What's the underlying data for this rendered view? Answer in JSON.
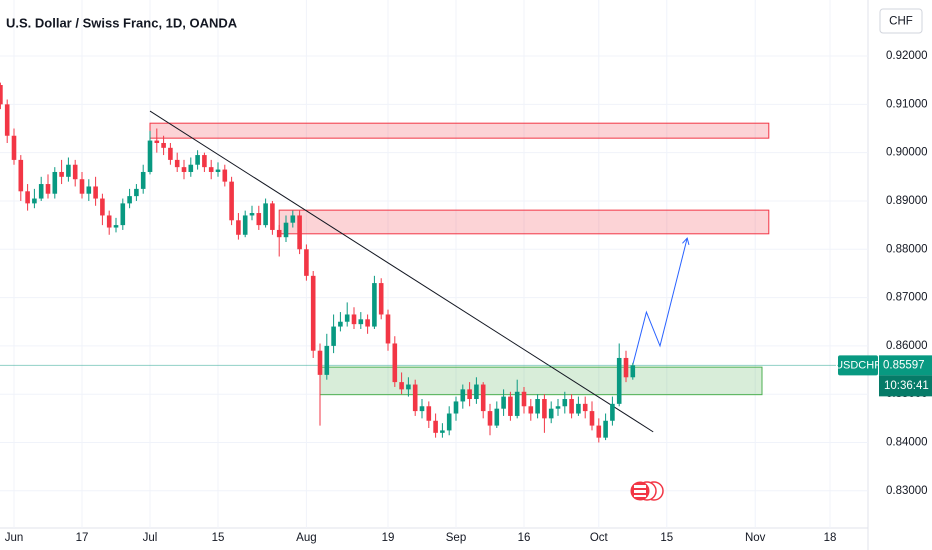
{
  "chart_data": {
    "type": "candlestick",
    "title": "U.S. Dollar / Swiss Franc, 1D, OANDA",
    "currency": "CHF",
    "symbol": "USDCHF",
    "countdown": "10:36:41",
    "up_color": "#089981",
    "down_color": "#f23645",
    "categories": [
      "May 30",
      "May 31",
      "Jun 3",
      "Jun 4",
      "Jun 5",
      "Jun 6",
      "Jun 7",
      "Jun 10",
      "Jun 11",
      "Jun 12",
      "Jun 13",
      "Jun 14",
      "Jun 17",
      "Jun 18",
      "Jun 19",
      "Jun 20",
      "Jun 21",
      "Jun 24",
      "Jun 25",
      "Jun 26",
      "Jun 27",
      "Jun 28",
      "Jul 1",
      "Jul 2",
      "Jul 3",
      "Jul 4",
      "Jul 5",
      "Jul 8",
      "Jul 9",
      "Jul 10",
      "Jul 11",
      "Jul 12",
      "Jul 15",
      "Jul 16",
      "Jul 17",
      "Jul 18",
      "Jul 19",
      "Jul 22",
      "Jul 23",
      "Jul 24",
      "Jul 25",
      "Jul 26",
      "Jul 29",
      "Jul 30",
      "Jul 31",
      "Aug 1",
      "Aug 2",
      "Aug 5",
      "Aug 6",
      "Aug 7",
      "Aug 8",
      "Aug 9",
      "Aug 12",
      "Aug 13",
      "Aug 14",
      "Aug 15",
      "Aug 16",
      "Aug 19",
      "Aug 20",
      "Aug 21",
      "Aug 22",
      "Aug 23",
      "Aug 26",
      "Aug 27",
      "Aug 28",
      "Aug 29",
      "Aug 30",
      "Sep 2",
      "Sep 3",
      "Sep 4",
      "Sep 5",
      "Sep 6",
      "Sep 9",
      "Sep 10",
      "Sep 11",
      "Sep 12",
      "Sep 13",
      "Sep 16",
      "Sep 17",
      "Sep 18",
      "Sep 19",
      "Sep 20",
      "Sep 23",
      "Sep 24",
      "Sep 25",
      "Sep 26",
      "Sep 27",
      "Sep 30",
      "Oct 1",
      "Oct 2",
      "Oct 3",
      "Oct 4",
      "Oct 7",
      "Oct 8",
      "Oct 9",
      "Oct 10",
      "Oct 11",
      "Oct 14",
      "Oct 15",
      "Oct 16",
      "Oct 17",
      "Oct 18",
      "Oct 21",
      "Oct 22",
      "Oct 23",
      "Oct 24",
      "Oct 25",
      "Oct 28",
      "Oct 29",
      "Oct 30",
      "Oct 31",
      "Nov 1",
      "Nov 4",
      "Nov 5",
      "Nov 6",
      "Nov 7",
      "Nov 8",
      "Nov 11",
      "Nov 12",
      "Nov 13",
      "Nov 14",
      "Nov 15",
      "Nov 18",
      "Nov 19",
      "Nov 20",
      "Nov 21",
      "Nov 22",
      "Nov 25"
    ],
    "open": [
      0.914,
      0.91,
      0.9035,
      0.8985,
      0.892,
      0.8895,
      0.8905,
      0.8935,
      0.8915,
      0.896,
      0.895,
      0.8975,
      0.8945,
      0.8915,
      0.893,
      0.8905,
      0.887,
      0.8845,
      0.885,
      0.8895,
      0.891,
      0.8925,
      0.896,
      0.9025,
      0.902,
      0.901,
      0.8985,
      0.897,
      0.896,
      0.8975,
      0.8995,
      0.897,
      0.896,
      0.8965,
      0.894,
      0.886,
      0.883,
      0.887,
      0.8875,
      0.885,
      0.8895,
      0.884,
      0.8825,
      0.8855,
      0.887,
      0.88,
      0.8745,
      0.859,
      0.854,
      0.86,
      0.864,
      0.865,
      0.8665,
      0.8645,
      0.8655,
      0.864,
      0.873,
      0.8665,
      0.8605,
      0.8525,
      0.851,
      0.852,
      0.8465,
      0.8475,
      0.8445,
      0.842,
      0.8425,
      0.846,
      0.8485,
      0.851,
      0.849,
      0.852,
      0.8465,
      0.8435,
      0.847,
      0.8495,
      0.8455,
      0.8505,
      0.8475,
      0.846,
      0.849,
      0.845,
      0.847,
      0.8475,
      0.849,
      0.846,
      0.848,
      0.8465,
      0.8435,
      0.841,
      0.8445,
      0.848,
      0.8575,
      0.8535,
      null,
      null,
      null,
      null,
      null,
      null,
      null,
      null,
      null,
      null,
      null,
      null,
      null,
      null,
      null,
      null,
      null,
      null,
      null,
      null,
      null,
      null,
      null,
      null,
      null,
      null,
      null,
      null,
      null,
      null,
      null,
      null,
      null,
      null
    ],
    "high": [
      0.9145,
      0.911,
      0.905,
      0.8995,
      0.8935,
      0.8925,
      0.895,
      0.8955,
      0.897,
      0.8985,
      0.899,
      0.8985,
      0.896,
      0.8945,
      0.895,
      0.8915,
      0.888,
      0.8865,
      0.8905,
      0.8925,
      0.8935,
      0.8975,
      0.9045,
      0.905,
      0.9035,
      0.902,
      0.9,
      0.8985,
      0.899,
      0.9005,
      0.9,
      0.8985,
      0.898,
      0.8975,
      0.895,
      0.8875,
      0.888,
      0.889,
      0.889,
      0.8905,
      0.89,
      0.885,
      0.887,
      0.888,
      0.888,
      0.881,
      0.8755,
      0.8605,
      0.8625,
      0.8665,
      0.867,
      0.869,
      0.868,
      0.867,
      0.8665,
      0.8745,
      0.874,
      0.8675,
      0.862,
      0.8545,
      0.8535,
      0.853,
      0.849,
      0.8485,
      0.846,
      0.844,
      0.8475,
      0.8495,
      0.852,
      0.8525,
      0.8535,
      0.8525,
      0.848,
      0.8485,
      0.851,
      0.8505,
      0.853,
      0.8515,
      0.849,
      0.85,
      0.85,
      0.8485,
      0.849,
      0.8505,
      0.85,
      0.8495,
      0.8495,
      0.8485,
      0.845,
      0.846,
      0.8495,
      0.8605,
      0.859,
      0.8565,
      null,
      null,
      null,
      null,
      null,
      null,
      null,
      null,
      null,
      null,
      null,
      null,
      null,
      null,
      null,
      null,
      null,
      null,
      null,
      null,
      null,
      null,
      null,
      null,
      null,
      null,
      null,
      null,
      null,
      null,
      null,
      null,
      null,
      null
    ],
    "low": [
      0.909,
      0.902,
      0.8975,
      0.89,
      0.888,
      0.8885,
      0.89,
      0.8905,
      0.8905,
      0.8935,
      0.894,
      0.893,
      0.8905,
      0.89,
      0.889,
      0.885,
      0.883,
      0.8835,
      0.884,
      0.8885,
      0.89,
      0.8915,
      0.8955,
      0.9,
      0.8995,
      0.8975,
      0.896,
      0.8945,
      0.895,
      0.8965,
      0.896,
      0.8945,
      0.895,
      0.893,
      0.885,
      0.882,
      0.8825,
      0.886,
      0.884,
      0.8845,
      0.883,
      0.8785,
      0.8815,
      0.8845,
      0.879,
      0.8735,
      0.8575,
      0.8435,
      0.853,
      0.8585,
      0.863,
      0.864,
      0.8635,
      0.8635,
      0.8625,
      0.8635,
      0.8655,
      0.859,
      0.8515,
      0.85,
      0.8495,
      0.8455,
      0.845,
      0.843,
      0.841,
      0.841,
      0.8415,
      0.8445,
      0.847,
      0.8475,
      0.848,
      0.845,
      0.8415,
      0.843,
      0.8455,
      0.8445,
      0.845,
      0.846,
      0.8445,
      0.845,
      0.842,
      0.844,
      0.8455,
      0.846,
      0.845,
      0.8455,
      0.845,
      0.8425,
      0.84,
      0.8405,
      0.8435,
      0.8475,
      0.8525,
      0.853,
      null,
      null,
      null,
      null,
      null,
      null,
      null,
      null,
      null,
      null,
      null,
      null,
      null,
      null,
      null,
      null,
      null,
      null,
      null,
      null,
      null,
      null,
      null,
      null,
      null,
      null,
      null,
      null,
      null,
      null,
      null,
      null,
      null,
      null
    ],
    "close": [
      0.91,
      0.9035,
      0.8985,
      0.892,
      0.8895,
      0.8905,
      0.8935,
      0.8915,
      0.896,
      0.895,
      0.8975,
      0.8945,
      0.8915,
      0.893,
      0.8905,
      0.887,
      0.8845,
      0.885,
      0.8895,
      0.891,
      0.8925,
      0.896,
      0.9025,
      0.902,
      0.901,
      0.8985,
      0.897,
      0.896,
      0.8975,
      0.8995,
      0.897,
      0.896,
      0.8965,
      0.894,
      0.886,
      0.883,
      0.887,
      0.8875,
      0.885,
      0.8895,
      0.884,
      0.8825,
      0.8855,
      0.887,
      0.88,
      0.8745,
      0.859,
      0.854,
      0.86,
      0.864,
      0.865,
      0.8665,
      0.8645,
      0.8655,
      0.864,
      0.873,
      0.8665,
      0.8605,
      0.8525,
      0.851,
      0.852,
      0.8465,
      0.8475,
      0.8445,
      0.842,
      0.8425,
      0.846,
      0.8485,
      0.851,
      0.849,
      0.852,
      0.8465,
      0.8435,
      0.847,
      0.8495,
      0.8455,
      0.8505,
      0.8475,
      0.846,
      0.849,
      0.845,
      0.847,
      0.8475,
      0.849,
      0.846,
      0.848,
      0.8465,
      0.8435,
      0.841,
      0.8445,
      0.848,
      0.8575,
      0.8535,
      0.85597,
      null,
      null,
      null,
      null,
      null,
      null,
      null,
      null,
      null,
      null,
      null,
      null,
      null,
      null,
      null,
      null,
      null,
      null,
      null,
      null,
      null,
      null,
      null,
      null,
      null,
      null,
      null,
      null,
      null,
      null,
      null,
      null,
      null,
      null
    ],
    "ylim": [
      0.8223,
      0.9316
    ],
    "yticks": [
      {
        "value": 0.83,
        "label": "0.83000"
      },
      {
        "value": 0.84,
        "label": "0.84000"
      },
      {
        "value": 0.85,
        "label": "0.85000"
      },
      {
        "value": 0.86,
        "label": "0.86000"
      },
      {
        "value": 0.87,
        "label": "0.87000"
      },
      {
        "value": 0.88,
        "label": "0.88000"
      },
      {
        "value": 0.89,
        "label": "0.89000"
      },
      {
        "value": 0.9,
        "label": "0.90000"
      },
      {
        "value": 0.91,
        "label": "0.91000"
      },
      {
        "value": 0.92,
        "label": "0.92000"
      }
    ],
    "xticks": [
      {
        "value": "Jun 3",
        "label": "Jun"
      },
      {
        "value": "Jun 17",
        "label": "17"
      },
      {
        "value": "Jul 1",
        "label": "Jul"
      },
      {
        "value": "Jul 15",
        "label": "15"
      },
      {
        "value": "Aug 1",
        "label": "Aug"
      },
      {
        "value": "Aug 19",
        "label": "19"
      },
      {
        "value": "Sep 2",
        "label": "Sep"
      },
      {
        "value": "Sep 16",
        "label": "16"
      },
      {
        "value": "Oct 1",
        "label": "Oct"
      },
      {
        "value": "Oct 15",
        "label": "15"
      },
      {
        "value": "Nov 1",
        "label": "Nov"
      },
      {
        "value": "Nov 18",
        "label": "18"
      }
    ],
    "zones": [
      {
        "from": "Jul 1",
        "to": "Nov 5",
        "top": 0.9061,
        "bottom": 0.903,
        "color": "#f23645"
      },
      {
        "from": "Jul 26",
        "to": "Nov 5",
        "top": 0.8881,
        "bottom": 0.8832,
        "color": "#f23645"
      },
      {
        "from": "Aug 5",
        "to": "Nov 4",
        "top": 0.8556,
        "bottom": 0.8499,
        "color": "#4caf50"
      }
    ],
    "trendline": {
      "x": [
        "Jul 1",
        "Oct 11"
      ],
      "y": [
        0.9086,
        0.8422
      ],
      "color": "#131722"
    },
    "projection": {
      "x": [
        "Oct 8",
        "Oct 10",
        "Oct 14",
        "Oct 18"
      ],
      "y": [
        0.8561,
        0.867,
        0.86,
        0.8823
      ],
      "color": "#2962ff"
    }
  }
}
